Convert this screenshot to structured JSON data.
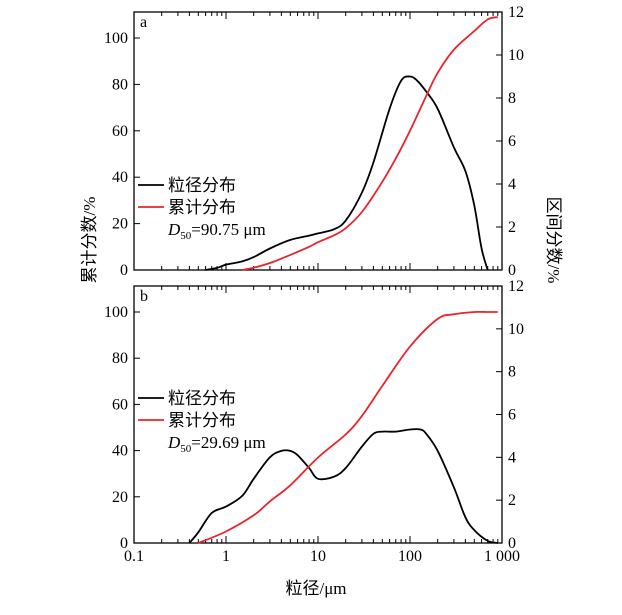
{
  "chart_data": [
    {
      "type": "line",
      "panel_label": "a",
      "xscale": "log",
      "xlim": [
        0.1,
        1000
      ],
      "ylim_left": [
        0,
        110
      ],
      "ylim_right": [
        0,
        12
      ],
      "yticks_left": [
        0,
        20,
        40,
        60,
        80,
        100
      ],
      "yticks_right": [
        0,
        2,
        4,
        6,
        8,
        10,
        12
      ],
      "legend_placement": "left",
      "annotation_prefix": "D",
      "annotation_sub": "50",
      "annotation_value": "=90.75 μm",
      "series": [
        {
          "name": "粒径分布",
          "color": "#000000",
          "axis": "right",
          "x": [
            0.6,
            0.8,
            1,
            1.5,
            2,
            3,
            5,
            8,
            10,
            15,
            20,
            30,
            40,
            60,
            80,
            100,
            120,
            150,
            200,
            300,
            400,
            500,
            600,
            700
          ],
          "y": [
            0,
            0.1,
            0.25,
            0.4,
            0.6,
            1.0,
            1.4,
            1.6,
            1.7,
            1.9,
            2.3,
            3.6,
            5.0,
            7.5,
            8.8,
            9.0,
            8.8,
            8.3,
            7.5,
            5.7,
            4.6,
            3.0,
            1.0,
            0
          ]
        },
        {
          "name": "累计分布",
          "color": "#e8242c",
          "axis": "left",
          "x": [
            1.5,
            2,
            3,
            5,
            8,
            10,
            15,
            20,
            30,
            50,
            70,
            100,
            150,
            200,
            300,
            500,
            700,
            900
          ],
          "y": [
            0,
            1,
            3,
            6.5,
            10,
            12,
            15,
            18,
            25,
            38,
            48,
            60,
            75,
            85,
            95,
            103,
            108,
            109
          ]
        }
      ]
    },
    {
      "type": "line",
      "panel_label": "b",
      "xscale": "log",
      "xlim": [
        0.1,
        1000
      ],
      "ylim_left": [
        0,
        110
      ],
      "ylim_right": [
        0,
        12
      ],
      "yticks_left": [
        0,
        20,
        40,
        60,
        80,
        100
      ],
      "yticks_right": [
        0,
        2,
        4,
        6,
        8,
        10,
        12
      ],
      "xticks": [
        0.1,
        1,
        10,
        100,
        1000
      ],
      "xtick_labels": [
        "0.1",
        "1",
        "10",
        "100",
        "1 000"
      ],
      "xlabel": "粒径/μm",
      "legend_placement": "left",
      "annotation_prefix": "D",
      "annotation_sub": "50",
      "annotation_value": "=29.69 μm",
      "series": [
        {
          "name": "粒径分布",
          "color": "#000000",
          "axis": "right",
          "x": [
            0.4,
            0.5,
            0.7,
            1,
            1.5,
            2,
            3,
            4,
            5,
            6,
            8,
            10,
            15,
            20,
            30,
            40,
            50,
            70,
            100,
            130,
            150,
            200,
            300,
            400,
            500,
            700,
            900
          ],
          "y": [
            0,
            0.5,
            1.4,
            1.7,
            2.2,
            3.0,
            4.0,
            4.3,
            4.3,
            4.1,
            3.5,
            3.0,
            3.1,
            3.5,
            4.5,
            5.1,
            5.2,
            5.2,
            5.3,
            5.3,
            5.1,
            4.3,
            2.6,
            1.2,
            0.6,
            0.1,
            0
          ]
        },
        {
          "name": "累计分布",
          "color": "#e8242c",
          "axis": "left",
          "x": [
            0.5,
            1,
            2,
            3,
            5,
            10,
            20,
            30,
            50,
            100,
            200,
            300,
            500,
            700,
            900
          ],
          "y": [
            0,
            5,
            12,
            18,
            25,
            37,
            47,
            55,
            68,
            85,
            97,
            99,
            100,
            100,
            100
          ]
        }
      ]
    }
  ],
  "shared": {
    "ylabel_left": "累计分数/%",
    "ylabel_right": "区间分数/%"
  }
}
